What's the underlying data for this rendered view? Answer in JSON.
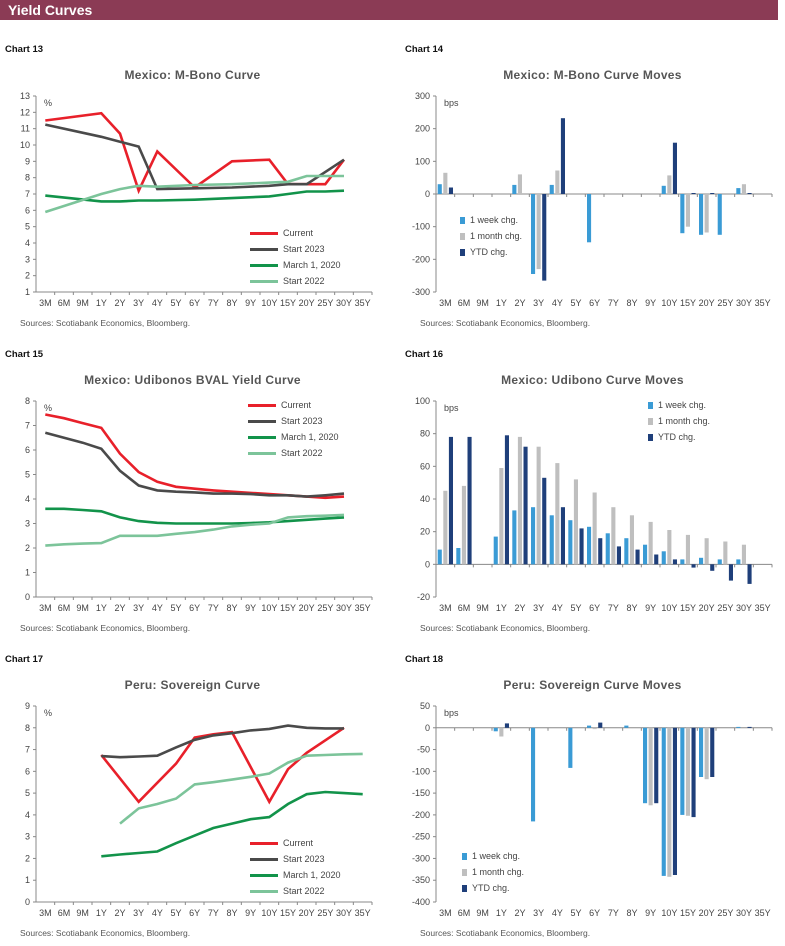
{
  "header": {
    "title": "Yield Curves"
  },
  "sources": "Sources: Scotiabank Economics, Bloomberg.",
  "colors": {
    "header": "#8b3b55",
    "current": "#e8202a",
    "start_2023": "#4a4a4a",
    "march_2020": "#12934a",
    "start_2022": "#7cc49a",
    "week": "#3a9bd5",
    "month": "#bfbfbf",
    "ytd": "#1f3f7a"
  },
  "chart_data": [
    {
      "label": "Chart 13",
      "type": "line",
      "title": "Mexico: M-Bono Curve",
      "ylabel": "%",
      "ylim": [
        1,
        13
      ],
      "ystep": 1,
      "legend": "bottom-right",
      "categories": [
        "3M",
        "6M",
        "9M",
        "1Y",
        "2Y",
        "3Y",
        "4Y",
        "5Y",
        "6Y",
        "7Y",
        "8Y",
        "9Y",
        "10Y",
        "15Y",
        "20Y",
        "25Y",
        "30Y",
        "35Y"
      ],
      "series": [
        {
          "name": "Current",
          "color": "#e8202a",
          "values": [
            11.5,
            null,
            null,
            11.95,
            10.7,
            7.2,
            9.6,
            null,
            7.4,
            null,
            9.0,
            null,
            9.1,
            7.6,
            7.6,
            7.6,
            9.1,
            null
          ]
        },
        {
          "name": "Start 2023",
          "color": "#4a4a4a",
          "values": [
            11.25,
            null,
            null,
            10.5,
            10.2,
            9.9,
            7.3,
            null,
            7.35,
            null,
            7.4,
            null,
            7.5,
            7.6,
            7.6,
            null,
            9.1,
            null
          ]
        },
        {
          "name": "March 1, 2020",
          "color": "#12934a",
          "values": [
            6.9,
            null,
            null,
            6.55,
            6.55,
            6.6,
            6.6,
            null,
            6.65,
            null,
            6.75,
            null,
            6.85,
            7.0,
            7.15,
            7.15,
            7.2,
            null
          ]
        },
        {
          "name": "Start 2022",
          "color": "#7cc49a",
          "values": [
            5.9,
            null,
            null,
            7.0,
            7.3,
            7.5,
            7.45,
            null,
            7.55,
            null,
            7.6,
            null,
            7.7,
            7.75,
            8.1,
            8.1,
            8.1,
            null
          ]
        }
      ]
    },
    {
      "label": "Chart 14",
      "type": "bar",
      "title": "Mexico: M-Bono Curve Moves",
      "ylabel": "bps",
      "ylim": [
        -300,
        300
      ],
      "ystep": 100,
      "legend": "middle-left",
      "categories": [
        "3M",
        "6M",
        "9M",
        "1Y",
        "2Y",
        "3Y",
        "4Y",
        "5Y",
        "6Y",
        "7Y",
        "8Y",
        "9Y",
        "10Y",
        "15Y",
        "20Y",
        "25Y",
        "30Y",
        "35Y"
      ],
      "series": [
        {
          "name": "1 week chg.",
          "color": "#3a9bd5",
          "values": [
            30,
            null,
            null,
            null,
            28,
            -245,
            28,
            null,
            -148,
            null,
            null,
            null,
            25,
            -120,
            -125,
            -125,
            18,
            null
          ]
        },
        {
          "name": "1 month chg.",
          "color": "#bfbfbf",
          "values": [
            65,
            null,
            null,
            null,
            60,
            -230,
            72,
            null,
            null,
            null,
            null,
            null,
            57,
            -100,
            -118,
            null,
            30,
            null
          ]
        },
        {
          "name": "YTD chg.",
          "color": "#1f3f7a",
          "values": [
            20,
            null,
            null,
            null,
            null,
            -265,
            232,
            null,
            null,
            null,
            null,
            null,
            157,
            3,
            3,
            null,
            3,
            null
          ]
        }
      ]
    },
    {
      "label": "Chart 15",
      "type": "line",
      "title": "Mexico: Udibonos BVAL Yield Curve",
      "ylabel": "%",
      "ylim": [
        0,
        8
      ],
      "ystep": 1,
      "legend": "top-right",
      "categories": [
        "3M",
        "6M",
        "9M",
        "1Y",
        "2Y",
        "3Y",
        "4Y",
        "5Y",
        "6Y",
        "7Y",
        "8Y",
        "9Y",
        "10Y",
        "15Y",
        "20Y",
        "25Y",
        "30Y",
        "35Y"
      ],
      "series": [
        {
          "name": "Current",
          "color": "#e8202a",
          "values": [
            7.45,
            7.3,
            7.1,
            6.9,
            5.85,
            5.1,
            4.7,
            4.5,
            4.42,
            4.35,
            4.3,
            4.25,
            4.2,
            4.15,
            4.1,
            4.05,
            4.1,
            null
          ]
        },
        {
          "name": "Start 2023",
          "color": "#4a4a4a",
          "values": [
            6.7,
            6.5,
            6.3,
            6.05,
            5.15,
            4.55,
            4.35,
            4.3,
            4.27,
            4.22,
            4.22,
            4.2,
            4.15,
            4.15,
            4.1,
            4.15,
            4.22,
            null
          ]
        },
        {
          "name": "March 1, 2020",
          "color": "#12934a",
          "values": [
            3.6,
            3.6,
            3.55,
            3.5,
            3.25,
            3.1,
            3.03,
            3.0,
            3.0,
            3.0,
            3.0,
            3.02,
            3.05,
            3.1,
            3.15,
            3.2,
            3.25,
            null
          ]
        },
        {
          "name": "Start 2022",
          "color": "#7cc49a",
          "values": [
            2.1,
            2.15,
            2.18,
            2.2,
            2.5,
            2.5,
            2.5,
            2.58,
            2.65,
            2.75,
            2.88,
            2.95,
            3.0,
            3.25,
            3.3,
            3.32,
            3.35,
            null
          ]
        }
      ]
    },
    {
      "label": "Chart 16",
      "type": "bar",
      "title": "Mexico: Udibono Curve Moves",
      "ylabel": "bps",
      "ylim": [
        -20,
        100
      ],
      "ystep": 20,
      "legend": "top-right",
      "categories": [
        "3M",
        "6M",
        "9M",
        "1Y",
        "2Y",
        "3Y",
        "4Y",
        "5Y",
        "6Y",
        "7Y",
        "8Y",
        "9Y",
        "10Y",
        "15Y",
        "20Y",
        "25Y",
        "30Y",
        "35Y"
      ],
      "series": [
        {
          "name": "1 week chg.",
          "color": "#3a9bd5",
          "values": [
            9,
            10,
            null,
            17,
            33,
            35,
            30,
            27,
            23,
            19,
            16,
            12,
            8,
            3,
            4,
            3,
            3,
            null
          ]
        },
        {
          "name": "1 month chg.",
          "color": "#bfbfbf",
          "values": [
            45,
            48,
            null,
            59,
            78,
            72,
            62,
            52,
            44,
            35,
            30,
            26,
            21,
            18,
            16,
            14,
            12,
            null
          ]
        },
        {
          "name": "YTD chg.",
          "color": "#1f3f7a",
          "values": [
            78,
            78,
            null,
            79,
            72,
            53,
            35,
            22,
            16,
            11,
            9,
            6,
            3,
            -2,
            -4,
            -10,
            -12,
            null
          ]
        }
      ]
    },
    {
      "label": "Chart 17",
      "type": "line",
      "title": "Peru: Sovereign Curve",
      "ylabel": "%",
      "ylim": [
        0,
        9
      ],
      "ystep": 1,
      "legend": "bottom-right",
      "categories": [
        "3M",
        "6M",
        "9M",
        "1Y",
        "2Y",
        "3Y",
        "4Y",
        "5Y",
        "6Y",
        "7Y",
        "8Y",
        "9Y",
        "10Y",
        "15Y",
        "20Y",
        "25Y",
        "30Y",
        "35Y"
      ],
      "series": [
        {
          "name": "Current",
          "color": "#e8202a",
          "values": [
            null,
            null,
            null,
            6.75,
            null,
            4.6,
            null,
            6.35,
            7.55,
            7.7,
            7.8,
            null,
            4.6,
            6.1,
            6.85,
            null,
            8.0,
            null
          ]
        },
        {
          "name": "Start 2023",
          "color": "#4a4a4a",
          "values": [
            null,
            null,
            null,
            6.7,
            6.65,
            6.68,
            6.72,
            7.1,
            7.45,
            7.65,
            7.75,
            7.88,
            7.95,
            8.1,
            8.0,
            7.97,
            7.97,
            null
          ]
        },
        {
          "name": "March 1, 2020",
          "color": "#12934a",
          "values": [
            null,
            null,
            null,
            2.1,
            2.18,
            2.25,
            2.32,
            2.7,
            3.05,
            3.4,
            3.6,
            3.8,
            3.9,
            4.5,
            4.95,
            5.05,
            5.0,
            4.95
          ]
        },
        {
          "name": "Start 2022",
          "color": "#7cc49a",
          "values": [
            null,
            null,
            null,
            null,
            3.6,
            4.3,
            4.5,
            4.75,
            5.4,
            5.5,
            5.62,
            5.75,
            5.9,
            6.4,
            6.72,
            6.75,
            6.78,
            6.8
          ]
        }
      ]
    },
    {
      "label": "Chart 18",
      "type": "bar",
      "title": "Peru: Sovereign Curve Moves",
      "ylabel": "bps",
      "ylim": [
        -400,
        50
      ],
      "ystep": 50,
      "legend": "bottom-left",
      "categories": [
        "3M",
        "6M",
        "9M",
        "1Y",
        "2Y",
        "3Y",
        "4Y",
        "5Y",
        "6Y",
        "7Y",
        "8Y",
        "9Y",
        "10Y",
        "15Y",
        "20Y",
        "25Y",
        "30Y",
        "35Y"
      ],
      "series": [
        {
          "name": "1 week chg.",
          "color": "#3a9bd5",
          "values": [
            null,
            null,
            null,
            -8,
            null,
            -215,
            null,
            -92,
            5,
            null,
            5,
            -173,
            -340,
            -200,
            -113,
            null,
            2,
            null
          ]
        },
        {
          "name": "1 month chg.",
          "color": "#bfbfbf",
          "values": [
            null,
            null,
            null,
            -20,
            null,
            null,
            null,
            null,
            -3,
            null,
            null,
            -178,
            -342,
            -202,
            -118,
            null,
            null,
            null
          ]
        },
        {
          "name": "YTD chg.",
          "color": "#1f3f7a",
          "values": [
            null,
            null,
            null,
            10,
            null,
            null,
            null,
            null,
            12,
            null,
            null,
            -173,
            -338,
            -205,
            -113,
            null,
            2,
            null
          ]
        }
      ]
    }
  ]
}
